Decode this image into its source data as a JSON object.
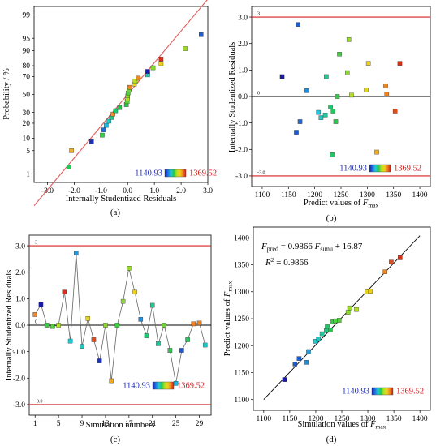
{
  "colorbar": {
    "min_label": "1140.93",
    "max_label": "1369.52",
    "min_value": 1140.93,
    "max_value": 1369.52,
    "stops": [
      "#1a1aa8",
      "#1e6fe0",
      "#22c8d8",
      "#22c84a",
      "#b8e020",
      "#f0d020",
      "#f08020",
      "#d01818"
    ]
  },
  "chart_data": [
    {
      "id": "a",
      "type": "scatter",
      "panel_label": "(a)",
      "xlabel": "Internally Studentized Residuals",
      "ylabel": "Probability / %",
      "xlim": [
        -3.5,
        3.0
      ],
      "x_ticks": [
        -3.0,
        -2.0,
        -1.0,
        0.0,
        1.0,
        2.0,
        3.0
      ],
      "x_tick_labels": [
        "-3.0",
        "-2.0",
        "-1.0",
        "0.0",
        "1.0",
        "2.0",
        "3.0"
      ],
      "y_scale": "normal-probability",
      "y_ticks": [
        1,
        5,
        10,
        20,
        30,
        50,
        70,
        80,
        90,
        95,
        99
      ],
      "y_tick_labels": [
        "1",
        "5",
        "10",
        "20",
        "30",
        "50",
        "70",
        "80",
        "90",
        "95",
        "99"
      ],
      "reference_line": "normal",
      "points": [
        {
          "x": -2.2,
          "p": 1.7,
          "response": 1236
        },
        {
          "x": -2.1,
          "p": 5.0,
          "response": 1318
        },
        {
          "x": -1.35,
          "p": 8.3,
          "response": 1150
        },
        {
          "x": -0.95,
          "p": 11.7,
          "response": 1244
        },
        {
          "x": -0.9,
          "p": 15.0,
          "response": 1173
        },
        {
          "x": -0.8,
          "p": 18.3,
          "response": 1200
        },
        {
          "x": -0.7,
          "p": 21.7,
          "response": 1210
        },
        {
          "x": -0.6,
          "p": 25.0,
          "response": 1225
        },
        {
          "x": -0.55,
          "p": 28.3,
          "response": 1330
        },
        {
          "x": -0.45,
          "p": 31.7,
          "response": 1232
        },
        {
          "x": -0.3,
          "p": 35.0,
          "response": 1238
        },
        {
          "x": -0.05,
          "p": 38.3,
          "response": 1240
        },
        {
          "x": -0.02,
          "p": 41.7,
          "response": 1252
        },
        {
          "x": 0.0,
          "p": 45.0,
          "response": 1270
        },
        {
          "x": 0.0,
          "p": 48.3,
          "response": 1262
        },
        {
          "x": 0.02,
          "p": 51.7,
          "response": 1248
        },
        {
          "x": 0.05,
          "p": 55.0,
          "response": 1255
        },
        {
          "x": 0.08,
          "p": 58.3,
          "response": 1335
        },
        {
          "x": 0.25,
          "p": 61.7,
          "response": 1302
        },
        {
          "x": 0.28,
          "p": 65.0,
          "response": 1272
        },
        {
          "x": 0.4,
          "p": 68.3,
          "response": 1333
        },
        {
          "x": 0.75,
          "p": 71.7,
          "response": 1215
        },
        {
          "x": 0.75,
          "p": 75.0,
          "response": 1138
        },
        {
          "x": 0.95,
          "p": 78.3,
          "response": 1260
        },
        {
          "x": 1.25,
          "p": 81.7,
          "response": 1302
        },
        {
          "x": 1.25,
          "p": 85.0,
          "response": 1362
        },
        {
          "x": 2.15,
          "p": 91.0,
          "response": 1265
        },
        {
          "x": 2.75,
          "p": 96.0,
          "response": 1168
        }
      ]
    },
    {
      "id": "b",
      "type": "scatter",
      "panel_label": "(b)",
      "xlabel": "Predict values of ",
      "xlabel_italic": "F",
      "xlabel_sub": "max",
      "ylabel": "Internally Studentized Residuals",
      "xlim": [
        1080,
        1420
      ],
      "ylim": [
        -3.4,
        3.4
      ],
      "x_ticks": [
        1100,
        1150,
        1200,
        1250,
        1300,
        1350,
        1400
      ],
      "x_tick_labels": [
        "1100",
        "1150",
        "1200",
        "1250",
        "1300",
        "1350",
        "1400"
      ],
      "y_ticks": [
        -3.0,
        -2.0,
        -1.0,
        0.0,
        1.0,
        2.0,
        3.0
      ],
      "y_tick_labels": [
        "-3.0",
        "-2.0",
        "-1.0",
        "0.0",
        "1.0",
        "2.0",
        "3.0"
      ],
      "limit_lines": [
        3.0,
        -3.0
      ],
      "limit_labels": [
        "3",
        "-3.0"
      ],
      "zero_line_label": "0",
      "points": [
        {
          "x": 1138,
          "y": 0.75,
          "response": 1138
        },
        {
          "x": 1165,
          "y": -1.35,
          "response": 1165
        },
        {
          "x": 1168,
          "y": 2.72,
          "response": 1168
        },
        {
          "x": 1172,
          "y": -0.95,
          "response": 1172
        },
        {
          "x": 1185,
          "y": 0.22,
          "response": 1185
        },
        {
          "x": 1207,
          "y": -0.6,
          "response": 1207
        },
        {
          "x": 1212,
          "y": -0.8,
          "response": 1212
        },
        {
          "x": 1220,
          "y": -0.7,
          "response": 1220
        },
        {
          "x": 1222,
          "y": 0.75,
          "response": 1222
        },
        {
          "x": 1230,
          "y": -0.4,
          "response": 1230
        },
        {
          "x": 1233,
          "y": -2.2,
          "response": 1233
        },
        {
          "x": 1235,
          "y": -0.55,
          "response": 1235
        },
        {
          "x": 1240,
          "y": -0.95,
          "response": 1240
        },
        {
          "x": 1243,
          "y": 0.0,
          "response": 1243
        },
        {
          "x": 1247,
          "y": 1.6,
          "response": 1247
        },
        {
          "x": 1262,
          "y": 0.9,
          "response": 1262
        },
        {
          "x": 1265,
          "y": 2.15,
          "response": 1265
        },
        {
          "x": 1270,
          "y": 0.05,
          "response": 1270
        },
        {
          "x": 1298,
          "y": 0.25,
          "response": 1298
        },
        {
          "x": 1302,
          "y": 1.25,
          "response": 1302
        },
        {
          "x": 1318,
          "y": -2.1,
          "response": 1318
        },
        {
          "x": 1335,
          "y": 0.4,
          "response": 1335
        },
        {
          "x": 1337,
          "y": 0.08,
          "response": 1337
        },
        {
          "x": 1353,
          "y": -0.55,
          "response": 1353
        },
        {
          "x": 1362,
          "y": 1.25,
          "response": 1362
        }
      ]
    },
    {
      "id": "c",
      "type": "line",
      "panel_label": "(c)",
      "xlabel": "Simulation numbers",
      "ylabel": "Internally Studentized Residuals",
      "xlim": [
        0,
        31
      ],
      "ylim": [
        -3.4,
        3.4
      ],
      "x_ticks": [
        1,
        5,
        9,
        13,
        17,
        21,
        25,
        29
      ],
      "x_tick_labels": [
        "1",
        "5",
        "9",
        "13",
        "17",
        "21",
        "25",
        "29"
      ],
      "y_ticks": [
        -3.0,
        -2.0,
        -1.0,
        0.0,
        1.0,
        2.0,
        3.0
      ],
      "y_tick_labels": [
        "-3.0",
        "-2.0",
        "-1.0",
        "0.0",
        "1.0",
        "2.0",
        "3.0"
      ],
      "limit_lines": [
        3.0,
        -3.0
      ],
      "limit_labels": [
        "3",
        "-3.0"
      ],
      "zero_line_label": "0",
      "points": [
        {
          "x": 1,
          "y": 0.4,
          "response": 1335
        },
        {
          "x": 2,
          "y": 0.78,
          "response": 1138
        },
        {
          "x": 3,
          "y": 0.0,
          "response": 1243
        },
        {
          "x": 4,
          "y": -0.05,
          "response": 1250
        },
        {
          "x": 5,
          "y": 0.0,
          "response": 1270
        },
        {
          "x": 6,
          "y": 1.25,
          "response": 1362
        },
        {
          "x": 7,
          "y": -0.6,
          "response": 1207
        },
        {
          "x": 8,
          "y": 2.72,
          "response": 1188
        },
        {
          "x": 9,
          "y": -0.8,
          "response": 1212
        },
        {
          "x": 10,
          "y": 0.25,
          "response": 1298
        },
        {
          "x": 11,
          "y": -0.55,
          "response": 1353
        },
        {
          "x": 12,
          "y": -1.35,
          "response": 1150
        },
        {
          "x": 13,
          "y": 0.0,
          "response": 1262
        },
        {
          "x": 14,
          "y": -2.1,
          "response": 1318
        },
        {
          "x": 15,
          "y": 0.0,
          "response": 1245
        },
        {
          "x": 16,
          "y": 0.9,
          "response": 1262
        },
        {
          "x": 17,
          "y": 2.15,
          "response": 1265
        },
        {
          "x": 18,
          "y": 1.25,
          "response": 1302
        },
        {
          "x": 19,
          "y": 0.22,
          "response": 1185
        },
        {
          "x": 20,
          "y": -0.4,
          "response": 1230
        },
        {
          "x": 21,
          "y": 0.75,
          "response": 1222
        },
        {
          "x": 22,
          "y": -0.7,
          "response": 1220
        },
        {
          "x": 23,
          "y": 0.0,
          "response": 1255
        },
        {
          "x": 24,
          "y": -0.95,
          "response": 1240
        },
        {
          "x": 25,
          "y": -2.2,
          "response": 1200
        },
        {
          "x": 26,
          "y": -0.95,
          "response": 1165
        },
        {
          "x": 27,
          "y": -0.55,
          "response": 1235
        },
        {
          "x": 28,
          "y": 0.05,
          "response": 1337
        },
        {
          "x": 29,
          "y": 0.08,
          "response": 1337
        },
        {
          "x": 30,
          "y": -0.75,
          "response": 1210
        }
      ]
    },
    {
      "id": "d",
      "type": "scatter",
      "panel_label": "(d)",
      "xlabel": "Simulation values of ",
      "xlabel_italic": "F",
      "xlabel_sub": "max",
      "ylabel": "Predict values of ",
      "ylabel_italic": "F",
      "ylabel_sub": "max",
      "xlim": [
        1080,
        1420
      ],
      "ylim": [
        1080,
        1420
      ],
      "x_ticks": [
        1100,
        1150,
        1200,
        1250,
        1300,
        1350,
        1400
      ],
      "x_tick_labels": [
        "1100",
        "1150",
        "1200",
        "1250",
        "1300",
        "1350",
        "1400"
      ],
      "y_ticks": [
        1100,
        1150,
        1200,
        1250,
        1300,
        1350,
        1400
      ],
      "y_tick_labels": [
        "1100",
        "1150",
        "1200",
        "1250",
        "1300",
        "1350",
        "1400"
      ],
      "fit": {
        "slope": 0.9866,
        "intercept": 16.87,
        "x_range": [
          1100,
          1400
        ]
      },
      "equation_line1": {
        "lhs_italic": "F",
        "lhs_sub": "pred",
        "middle": " = 0.9866 ",
        "rhs_italic": "F",
        "rhs_sub": "simu",
        "tail": " + 16.87"
      },
      "equation_line2": {
        "italic": "R",
        "sup": "2",
        "tail": " = 0.9866"
      },
      "points": [
        {
          "x": 1140,
          "y": 1137,
          "response": 1138
        },
        {
          "x": 1160,
          "y": 1166,
          "response": 1165
        },
        {
          "x": 1168,
          "y": 1176,
          "response": 1168
        },
        {
          "x": 1182,
          "y": 1169,
          "response": 1185
        },
        {
          "x": 1186,
          "y": 1189,
          "response": 1190
        },
        {
          "x": 1200,
          "y": 1208,
          "response": 1207
        },
        {
          "x": 1205,
          "y": 1212,
          "response": 1212
        },
        {
          "x": 1212,
          "y": 1222,
          "response": 1220
        },
        {
          "x": 1220,
          "y": 1228,
          "response": 1225
        },
        {
          "x": 1222,
          "y": 1235,
          "response": 1232
        },
        {
          "x": 1228,
          "y": 1229,
          "response": 1238
        },
        {
          "x": 1232,
          "y": 1244,
          "response": 1243
        },
        {
          "x": 1238,
          "y": 1246,
          "response": 1248
        },
        {
          "x": 1245,
          "y": 1247,
          "response": 1250
        },
        {
          "x": 1262,
          "y": 1262,
          "response": 1262
        },
        {
          "x": 1265,
          "y": 1270,
          "response": 1265
        },
        {
          "x": 1278,
          "y": 1267,
          "response": 1270
        },
        {
          "x": 1298,
          "y": 1300,
          "response": 1298
        },
        {
          "x": 1305,
          "y": 1301,
          "response": 1302
        },
        {
          "x": 1333,
          "y": 1337,
          "response": 1335
        },
        {
          "x": 1345,
          "y": 1355,
          "response": 1353
        },
        {
          "x": 1362,
          "y": 1363,
          "response": 1362
        }
      ]
    }
  ]
}
